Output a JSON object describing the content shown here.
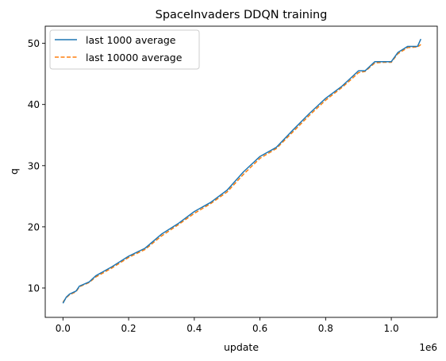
{
  "chart_data": {
    "type": "line",
    "title": "SpaceInvaders DDQN training",
    "xlabel": "update",
    "ylabel": "q",
    "x_offset_label": "1e6",
    "xlim": [
      -0.054,
      1.14
    ],
    "ylim": [
      5.2,
      52.8
    ],
    "xticks": [
      0.0,
      0.2,
      0.4,
      0.6,
      0.8,
      1.0
    ],
    "xtick_labels": [
      "0.0",
      "0.2",
      "0.4",
      "0.6",
      "0.8",
      "1.0"
    ],
    "yticks": [
      10,
      20,
      30,
      40,
      50
    ],
    "ytick_labels": [
      "10",
      "20",
      "30",
      "40",
      "50"
    ],
    "grid": false,
    "legend_position": "upper-left",
    "series": [
      {
        "name": "last 1000 average",
        "color": "#1f77b4",
        "style": "solid",
        "x": [
          0.0,
          0.005,
          0.01,
          0.02,
          0.04,
          0.05,
          0.08,
          0.1,
          0.15,
          0.2,
          0.25,
          0.3,
          0.35,
          0.4,
          0.45,
          0.5,
          0.55,
          0.6,
          0.65,
          0.7,
          0.75,
          0.8,
          0.85,
          0.88,
          0.9,
          0.92,
          0.95,
          0.98,
          1.0,
          1.02,
          1.05,
          1.08,
          1.09
        ],
        "y": [
          7.5,
          8.0,
          8.5,
          9.0,
          9.5,
          10.3,
          11.0,
          12.0,
          13.5,
          15.2,
          16.5,
          18.8,
          20.5,
          22.5,
          24.0,
          26.0,
          29.0,
          31.5,
          33.0,
          35.8,
          38.5,
          41.0,
          43.0,
          44.5,
          45.5,
          45.5,
          47.0,
          47.0,
          47.0,
          48.5,
          49.5,
          49.5,
          50.7
        ]
      },
      {
        "name": "last 10000 average",
        "color": "#ff7f0e",
        "style": "dashed",
        "x": [
          0.0,
          0.01,
          0.02,
          0.04,
          0.05,
          0.08,
          0.1,
          0.15,
          0.2,
          0.25,
          0.3,
          0.35,
          0.4,
          0.45,
          0.5,
          0.55,
          0.6,
          0.65,
          0.7,
          0.75,
          0.8,
          0.85,
          0.88,
          0.9,
          0.92,
          0.95,
          0.98,
          1.0,
          1.02,
          1.05,
          1.08,
          1.09
        ],
        "y": [
          7.7,
          8.4,
          8.9,
          9.4,
          10.2,
          10.9,
          11.8,
          13.3,
          15.0,
          16.3,
          18.5,
          20.3,
          22.2,
          23.8,
          25.7,
          28.6,
          31.2,
          32.8,
          35.5,
          38.2,
          40.7,
          42.8,
          44.2,
          45.2,
          45.4,
          46.8,
          46.9,
          46.9,
          48.3,
          49.3,
          49.4,
          49.8
        ]
      }
    ]
  }
}
